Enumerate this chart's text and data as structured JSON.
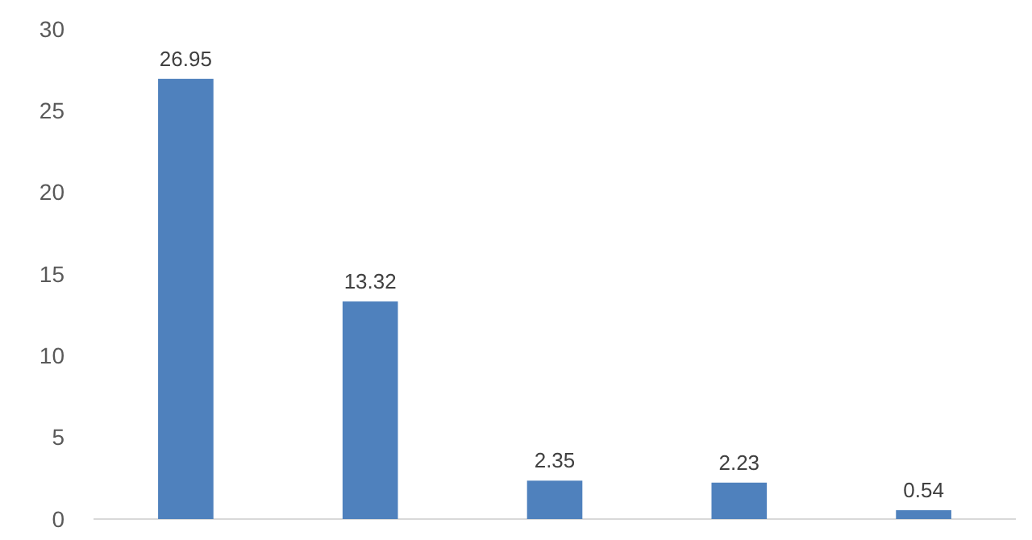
{
  "chart_data": {
    "type": "bar",
    "categories": [
      null,
      null,
      null,
      null,
      null
    ],
    "values": [
      26.95,
      13.32,
      2.35,
      2.23,
      0.54
    ],
    "color": "#4f81bd",
    "ylim": [
      0,
      30
    ],
    "yticks": [
      0,
      5,
      10,
      15,
      20,
      25,
      30
    ],
    "data_labels": true,
    "grid": false
  }
}
